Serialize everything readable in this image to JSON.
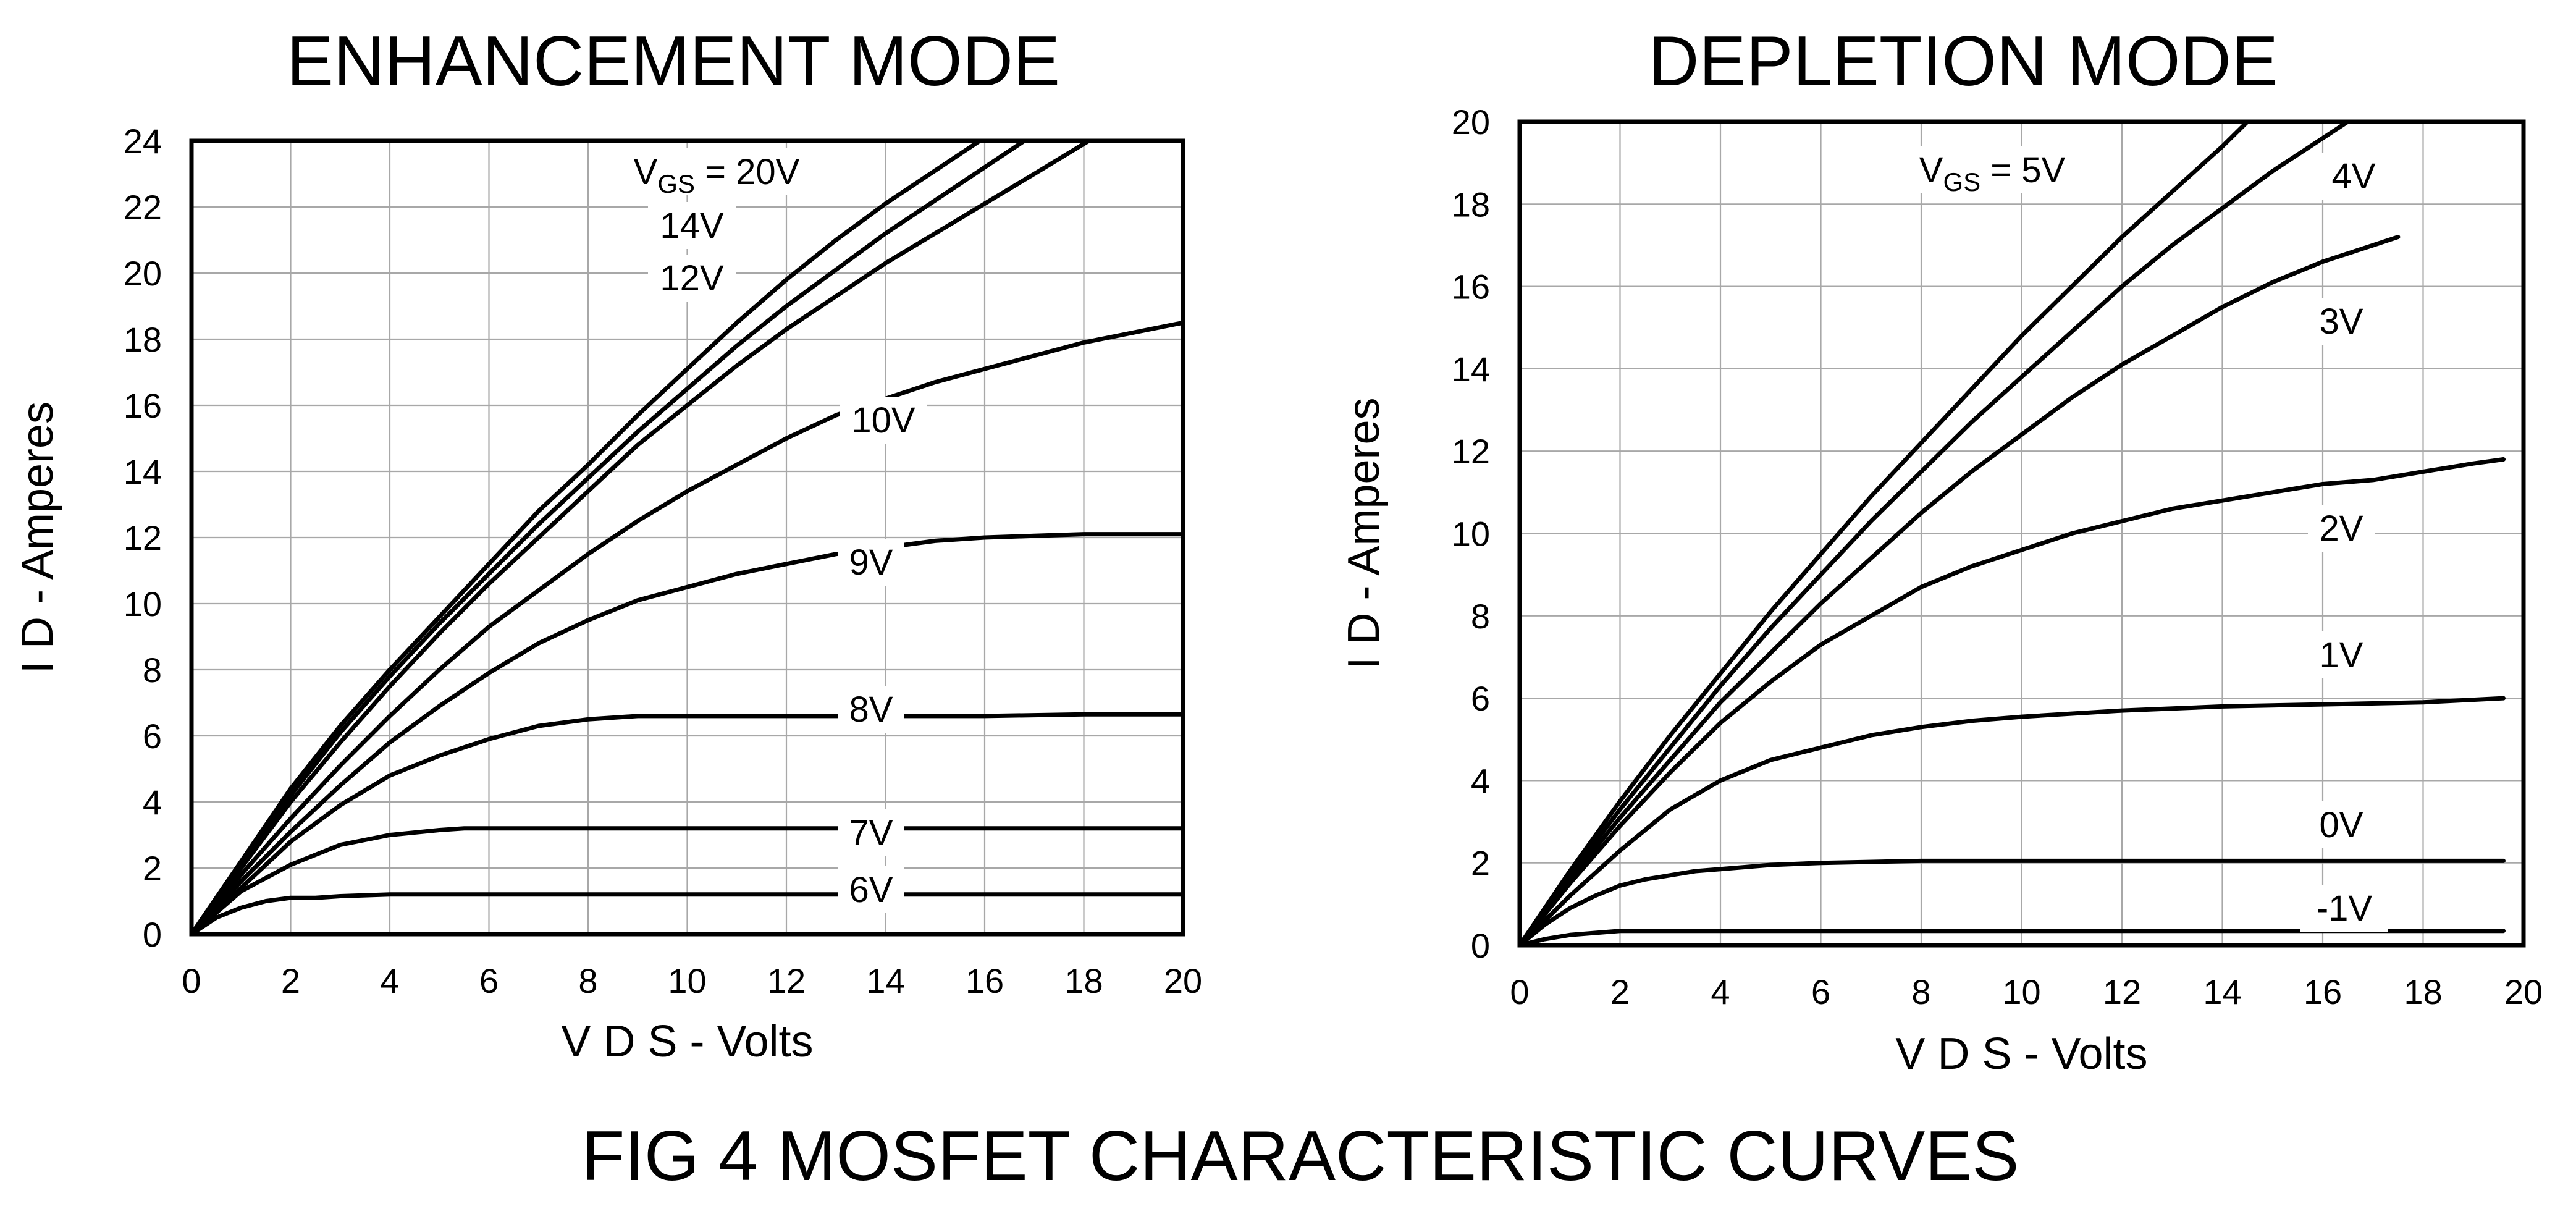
{
  "figure": {
    "caption": "FIG 4  MOSFET CHARACTERISTIC CURVES"
  },
  "chart_data": [
    {
      "type": "line",
      "title": "ENHANCEMENT MODE",
      "xlabel": "V D S - Volts",
      "ylabel": "I D - Amperes",
      "xlim": [
        0,
        20
      ],
      "ylim": [
        0,
        24
      ],
      "x_ticks": [
        "0",
        "2",
        "4",
        "6",
        "8",
        "10",
        "12",
        "14",
        "16",
        "18",
        "20"
      ],
      "y_ticks": [
        "0",
        "2",
        "4",
        "6",
        "8",
        "10",
        "12",
        "14",
        "16",
        "18",
        "20",
        "22",
        "24"
      ],
      "grid": true,
      "series": [
        {
          "name": "VGS = 20V",
          "label": "VGS = 20V",
          "x": [
            0,
            1,
            2,
            3,
            4,
            5,
            6,
            7,
            8,
            9,
            10,
            11,
            12,
            13,
            14,
            15,
            15.9
          ],
          "y": [
            0,
            2.2,
            4.4,
            6.3,
            8.0,
            9.6,
            11.2,
            12.8,
            14.2,
            15.7,
            17.1,
            18.5,
            19.8,
            21.0,
            22.1,
            23.1,
            24
          ]
        },
        {
          "name": "14V",
          "label": "14V",
          "x": [
            0,
            1,
            2,
            3,
            4,
            5,
            6,
            7,
            8,
            9,
            10,
            11,
            12,
            13,
            14,
            15,
            16,
            16.8
          ],
          "y": [
            0,
            2.1,
            4.2,
            6.1,
            7.8,
            9.4,
            10.9,
            12.4,
            13.8,
            15.2,
            16.5,
            17.8,
            19.0,
            20.1,
            21.2,
            22.2,
            23.2,
            24
          ]
        },
        {
          "name": "12V",
          "label": "12V",
          "x": [
            0,
            1,
            2,
            3,
            4,
            5,
            6,
            7,
            8,
            9,
            10,
            11,
            12,
            13,
            14,
            15,
            16,
            17,
            18.1
          ],
          "y": [
            0,
            2.0,
            4.0,
            5.8,
            7.5,
            9.1,
            10.6,
            12.0,
            13.4,
            14.8,
            16.0,
            17.2,
            18.3,
            19.3,
            20.3,
            21.2,
            22.1,
            23.0,
            24
          ]
        },
        {
          "name": "10V",
          "label": "10V",
          "x": [
            0,
            1,
            2,
            3,
            4,
            5,
            6,
            7,
            8,
            9,
            10,
            11,
            12,
            13,
            14,
            15,
            16,
            17,
            18,
            19,
            20
          ],
          "y": [
            0,
            1.8,
            3.5,
            5.1,
            6.6,
            8.0,
            9.3,
            10.4,
            11.5,
            12.5,
            13.4,
            14.2,
            15.0,
            15.7,
            16.2,
            16.7,
            17.1,
            17.5,
            17.9,
            18.2,
            18.5
          ]
        },
        {
          "name": "9V",
          "label": "9V",
          "x": [
            0,
            1,
            2,
            3,
            4,
            5,
            6,
            7,
            8,
            9,
            10,
            11,
            12,
            13,
            14,
            15,
            16,
            17,
            18,
            19,
            20
          ],
          "y": [
            0,
            1.6,
            3.1,
            4.5,
            5.8,
            6.9,
            7.9,
            8.8,
            9.5,
            10.1,
            10.5,
            10.9,
            11.2,
            11.5,
            11.7,
            11.9,
            12.0,
            12.05,
            12.1,
            12.1,
            12.1
          ]
        },
        {
          "name": "8V",
          "label": "8V",
          "x": [
            0,
            1,
            2,
            3,
            4,
            5,
            6,
            7,
            8,
            9,
            10,
            12,
            14,
            16,
            18,
            20
          ],
          "y": [
            0,
            1.4,
            2.8,
            3.9,
            4.8,
            5.4,
            5.9,
            6.3,
            6.5,
            6.6,
            6.6,
            6.6,
            6.6,
            6.6,
            6.65,
            6.65
          ]
        },
        {
          "name": "7V",
          "label": "7V",
          "x": [
            0,
            1,
            2,
            3,
            4,
            5,
            5.5,
            6,
            8,
            10,
            12,
            14,
            16,
            18,
            20
          ],
          "y": [
            0,
            1.3,
            2.1,
            2.7,
            3.0,
            3.15,
            3.2,
            3.2,
            3.2,
            3.2,
            3.2,
            3.2,
            3.2,
            3.2,
            3.2
          ]
        },
        {
          "name": "6V",
          "label": "6V",
          "x": [
            0,
            0.5,
            1,
            1.5,
            2,
            2.5,
            3,
            4,
            6,
            8,
            10,
            12,
            14,
            16,
            18,
            20
          ],
          "y": [
            0,
            0.5,
            0.8,
            1.0,
            1.1,
            1.1,
            1.15,
            1.2,
            1.2,
            1.2,
            1.2,
            1.2,
            1.2,
            1.2,
            1.2,
            1.2
          ]
        }
      ]
    },
    {
      "type": "line",
      "title": "DEPLETION MODE",
      "xlabel": "V D S - Volts",
      "ylabel": "I D - Amperes",
      "xlim": [
        0,
        20
      ],
      "ylim": [
        0,
        20
      ],
      "x_ticks": [
        "0",
        "2",
        "4",
        "6",
        "8",
        "10",
        "12",
        "14",
        "16",
        "18",
        "20"
      ],
      "y_ticks": [
        "0",
        "2",
        "4",
        "6",
        "8",
        "10",
        "12",
        "14",
        "16",
        "18",
        "20"
      ],
      "grid": true,
      "series": [
        {
          "name": "VGS = 5V",
          "label": "VGS = 5V",
          "x": [
            0,
            1,
            2,
            3,
            4,
            5,
            6,
            7,
            8,
            9,
            10,
            11,
            12,
            13,
            14,
            14.5
          ],
          "y": [
            0,
            1.8,
            3.5,
            5.1,
            6.6,
            8.1,
            9.5,
            10.9,
            12.2,
            13.5,
            14.8,
            16.0,
            17.2,
            18.3,
            19.4,
            20
          ]
        },
        {
          "name": "4V",
          "label": "4V",
          "x": [
            0,
            1,
            2,
            3,
            4,
            5,
            6,
            7,
            8,
            9,
            10,
            11,
            12,
            13,
            14,
            15,
            16,
            16.5
          ],
          "y": [
            0,
            1.7,
            3.3,
            4.8,
            6.3,
            7.7,
            9.0,
            10.3,
            11.5,
            12.7,
            13.8,
            14.9,
            16.0,
            17.0,
            17.9,
            18.8,
            19.6,
            20
          ]
        },
        {
          "name": "3V",
          "label": "3V",
          "x": [
            0,
            1,
            2,
            3,
            4,
            5,
            6,
            7,
            8,
            9,
            10,
            11,
            12,
            13,
            14,
            15,
            16,
            17,
            17.5
          ],
          "y": [
            0,
            1.6,
            3.1,
            4.5,
            5.9,
            7.1,
            8.3,
            9.4,
            10.5,
            11.5,
            12.4,
            13.3,
            14.1,
            14.8,
            15.5,
            16.1,
            16.6,
            17.0,
            17.2
          ]
        },
        {
          "name": "2V",
          "label": "2V",
          "x": [
            0,
            1,
            2,
            3,
            4,
            5,
            6,
            7,
            8,
            9,
            10,
            11,
            12,
            13,
            14,
            15,
            16,
            17,
            18,
            19,
            19.6
          ],
          "y": [
            0,
            1.5,
            2.9,
            4.2,
            5.4,
            6.4,
            7.3,
            8.0,
            8.7,
            9.2,
            9.6,
            10.0,
            10.3,
            10.6,
            10.8,
            11.0,
            11.2,
            11.3,
            11.5,
            11.7,
            11.8
          ]
        },
        {
          "name": "1V",
          "label": "1V",
          "x": [
            0,
            1,
            2,
            3,
            4,
            5,
            6,
            7,
            8,
            9,
            10,
            12,
            14,
            16,
            18,
            19.6
          ],
          "y": [
            0,
            1.2,
            2.3,
            3.3,
            4.0,
            4.5,
            4.8,
            5.1,
            5.3,
            5.45,
            5.55,
            5.7,
            5.8,
            5.85,
            5.9,
            6.0
          ]
        },
        {
          "name": "0V",
          "label": "0V",
          "x": [
            0,
            0.5,
            1,
            1.5,
            2,
            2.5,
            3,
            3.5,
            4,
            5,
            6,
            8,
            10,
            12,
            14,
            16,
            18,
            19.6
          ],
          "y": [
            0,
            0.5,
            0.9,
            1.2,
            1.45,
            1.6,
            1.7,
            1.8,
            1.85,
            1.95,
            2.0,
            2.05,
            2.05,
            2.05,
            2.05,
            2.05,
            2.05,
            2.05
          ]
        },
        {
          "name": "-1V",
          "label": "-1V",
          "x": [
            0,
            0.5,
            1,
            1.5,
            2,
            4,
            8,
            12,
            16,
            19.6
          ],
          "y": [
            0,
            0.15,
            0.25,
            0.3,
            0.35,
            0.35,
            0.35,
            0.35,
            0.35,
            0.35
          ]
        }
      ]
    }
  ]
}
